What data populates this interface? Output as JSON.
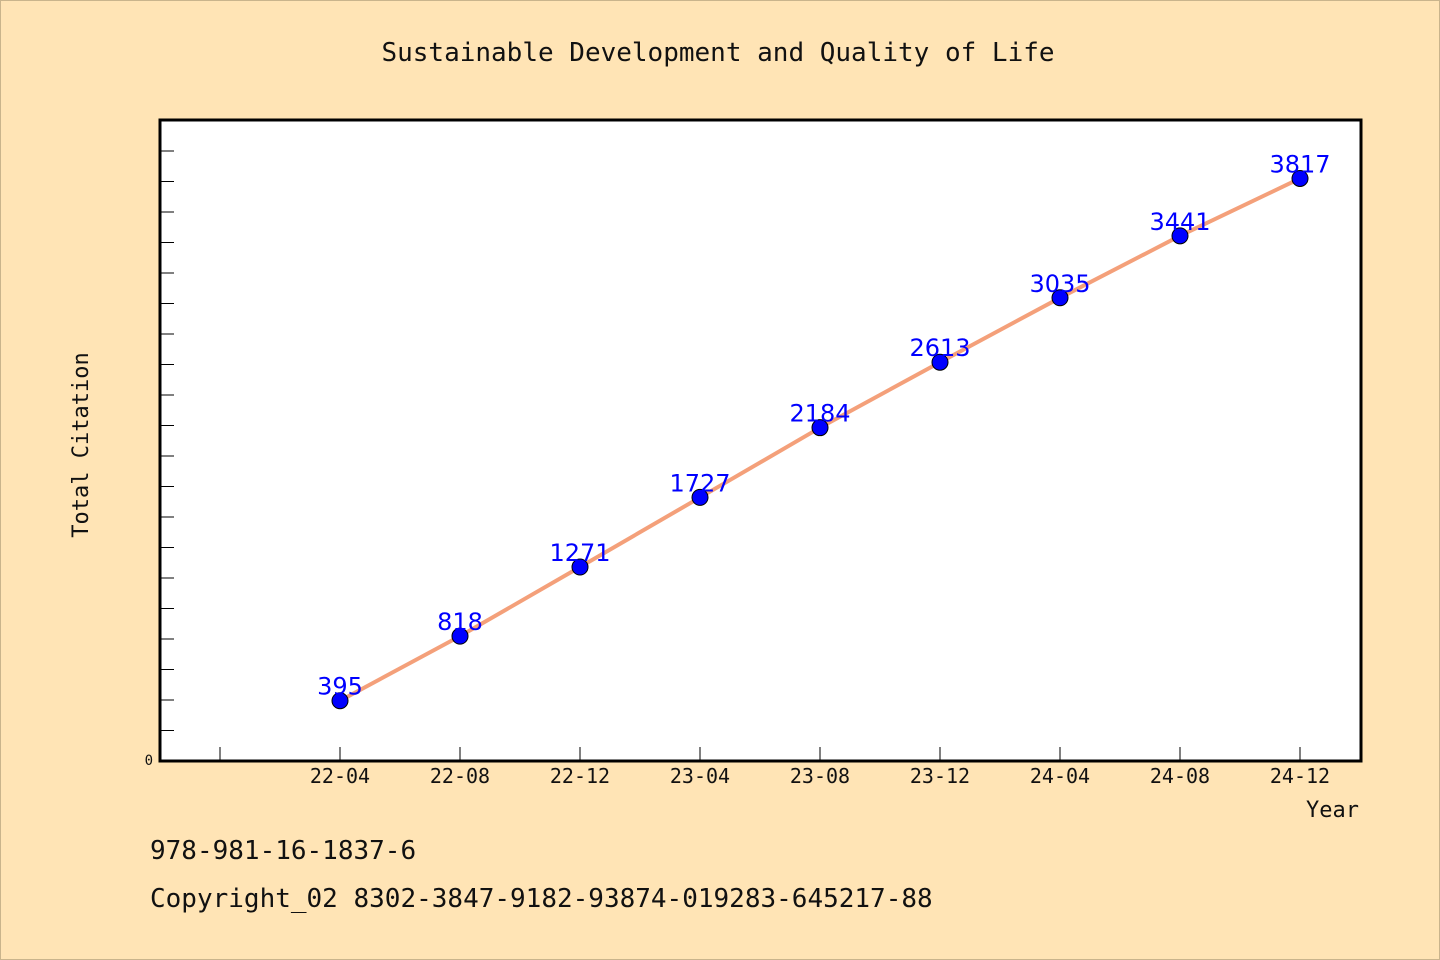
{
  "chart_data": {
    "type": "line",
    "title": "Sustainable Development and Quality of Life",
    "xlabel": "Year",
    "ylabel": "Total Citation",
    "categories": [
      "22-04",
      "22-08",
      "22-12",
      "23-04",
      "23-08",
      "23-12",
      "24-04",
      "24-08",
      "24-12"
    ],
    "series": [
      {
        "values": [
          395,
          818,
          1271,
          1727,
          2184,
          2613,
          3035,
          3441,
          3817
        ]
      }
    ],
    "ylim": [
      0,
      4200
    ],
    "y_tick_labels": [
      "0"
    ],
    "data_labels_visible": true,
    "grid": false,
    "line_color": "#f4a07a",
    "marker_color": "#0000ff",
    "label_color": "#0000ff",
    "background_color": "#ffe4b5",
    "plot_background_color": "#ffffff"
  },
  "footer": {
    "isbn": "978-981-16-1837-6",
    "copyright": "Copyright_02 8302-3847-9182-93874-019283-645217-88"
  }
}
